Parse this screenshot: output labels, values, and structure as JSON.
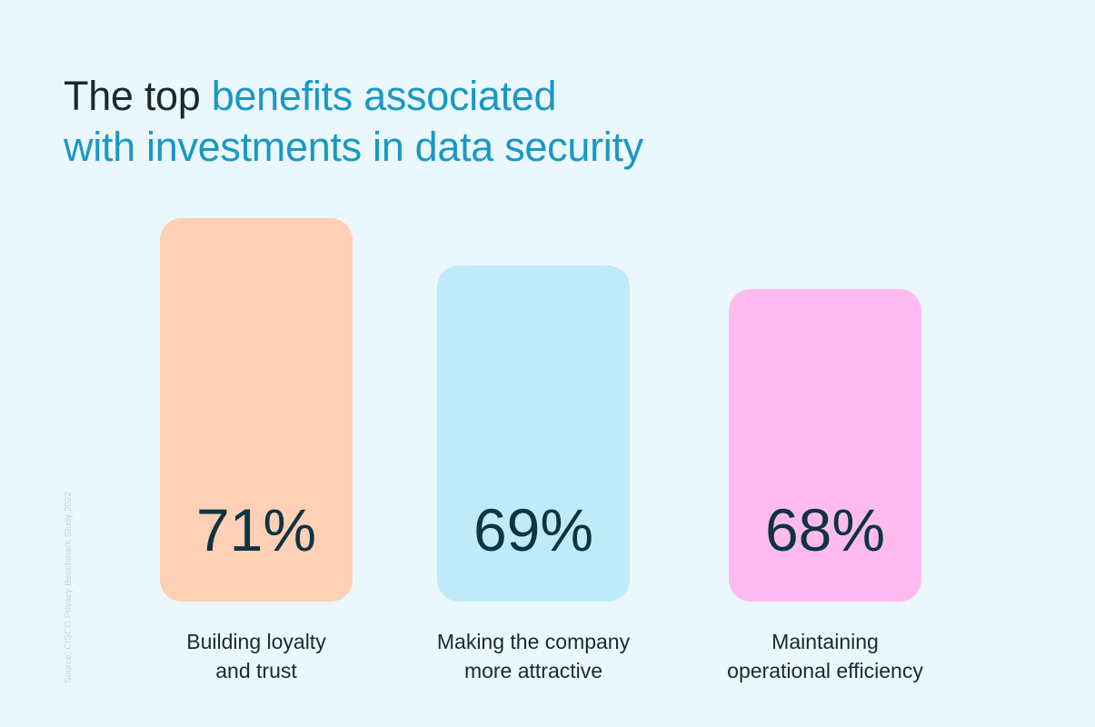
{
  "title": {
    "plain": "The top ",
    "highlight_line1": "benefits associated",
    "highlight_line2": "with investments in data security"
  },
  "source": "Source: CISCO Privacy Benchmark Study 2022",
  "chart_data": {
    "type": "bar",
    "categories": [
      "Building loyalty and trust",
      "Making the company more attractive",
      "Maintaining operational efficiency"
    ],
    "category_lines": [
      [
        "Building loyalty",
        "and trust"
      ],
      [
        "Making the company",
        "more attractive"
      ],
      [
        "Maintaining",
        "operational efficiency"
      ]
    ],
    "values": [
      71,
      69,
      68
    ],
    "labels": [
      "71%",
      "69%",
      "68%"
    ],
    "unit": "%",
    "colors": [
      "#ffd0b5",
      "#bfeafa",
      "#ffbbf0"
    ],
    "grid": false
  }
}
